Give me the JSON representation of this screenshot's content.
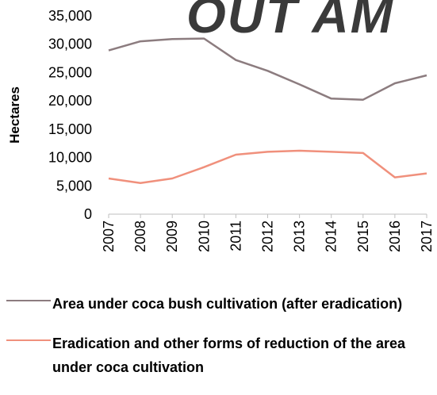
{
  "watermark": "OUT AM",
  "chart_data": {
    "type": "line",
    "title": "",
    "xlabel": "",
    "ylabel": "Hectares",
    "ylim": [
      0,
      35000
    ],
    "y_ticks": [
      "0",
      "5,000",
      "10,000",
      "15,000",
      "20,000",
      "25,000",
      "30,000",
      "35,000"
    ],
    "categories": [
      "2007",
      "2008",
      "2009",
      "2010",
      "2011",
      "2012",
      "2013",
      "2014",
      "2015",
      "2016",
      "2017"
    ],
    "grid": false,
    "legend_position": "bottom",
    "series": [
      {
        "name": "Area under coca bush cultivation (after eradication)",
        "color": "#8c7c7f",
        "values": [
          28900,
          30500,
          30900,
          31000,
          27200,
          25300,
          22900,
          20400,
          20200,
          23100,
          24500
        ]
      },
      {
        "name": "Eradication and other forms of reduction of the area under coca cultivation",
        "color": "#f0907c",
        "values": [
          6300,
          5500,
          6300,
          8300,
          10500,
          11000,
          11200,
          11000,
          10800,
          6500,
          7200
        ]
      }
    ]
  }
}
